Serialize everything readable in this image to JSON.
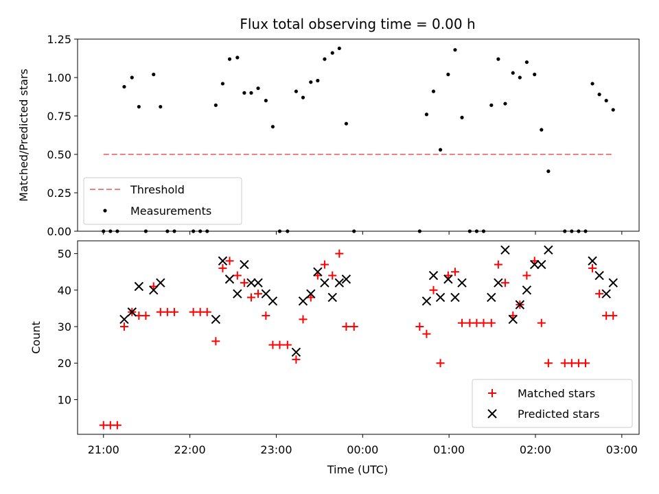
{
  "chart_data": [
    {
      "type": "scatter",
      "title": "Flux total observing time = 0.00 h",
      "xlabel": "",
      "ylabel": "Matched/Predicted stars",
      "ylim": [
        0,
        1.25
      ],
      "yticks": [
        "0.00",
        "0.25",
        "0.50",
        "0.75",
        "1.00",
        "1.25"
      ],
      "x_range_hours": [
        20.7,
        27.2
      ],
      "threshold": {
        "name": "Threshold",
        "value": 0.5,
        "x_start": 21.0,
        "x_end": 26.9,
        "color": "#f08080"
      },
      "legend": {
        "position": "lower-left"
      },
      "series": [
        {
          "name": "Measurements",
          "color": "#000000",
          "points": [
            [
              21.0,
              0
            ],
            [
              21.08,
              0
            ],
            [
              21.16,
              0
            ],
            [
              21.24,
              0.94
            ],
            [
              21.33,
              1.0
            ],
            [
              21.41,
              0.81
            ],
            [
              21.49,
              0
            ],
            [
              21.58,
              1.02
            ],
            [
              21.66,
              0.81
            ],
            [
              21.74,
              0
            ],
            [
              21.82,
              0
            ],
            [
              22.04,
              0
            ],
            [
              22.12,
              0
            ],
            [
              22.2,
              0
            ],
            [
              22.3,
              0.82
            ],
            [
              22.38,
              0.96
            ],
            [
              22.46,
              1.12
            ],
            [
              22.55,
              1.13
            ],
            [
              22.63,
              0.9
            ],
            [
              22.71,
              0.9
            ],
            [
              22.79,
              0.93
            ],
            [
              22.88,
              0.85
            ],
            [
              22.96,
              0.68
            ],
            [
              23.04,
              0
            ],
            [
              23.13,
              0
            ],
            [
              23.23,
              0.91
            ],
            [
              23.31,
              0.87
            ],
            [
              23.4,
              0.97
            ],
            [
              23.48,
              0.98
            ],
            [
              23.56,
              1.12
            ],
            [
              23.65,
              1.16
            ],
            [
              23.73,
              1.19
            ],
            [
              23.81,
              0.7
            ],
            [
              23.9,
              0
            ],
            [
              24.66,
              0
            ],
            [
              24.74,
              0.76
            ],
            [
              24.82,
              0.91
            ],
            [
              24.9,
              0.53
            ],
            [
              24.99,
              1.02
            ],
            [
              25.07,
              1.18
            ],
            [
              25.15,
              0.74
            ],
            [
              25.24,
              0
            ],
            [
              25.32,
              0
            ],
            [
              25.4,
              0
            ],
            [
              25.49,
              0.82
            ],
            [
              25.57,
              1.12
            ],
            [
              25.65,
              0.83
            ],
            [
              25.74,
              1.03
            ],
            [
              25.82,
              1.0
            ],
            [
              25.9,
              1.1
            ],
            [
              25.99,
              1.02
            ],
            [
              26.07,
              0.66
            ],
            [
              26.15,
              0.39
            ],
            [
              26.34,
              0
            ],
            [
              26.42,
              0
            ],
            [
              26.5,
              0
            ],
            [
              26.58,
              0
            ],
            [
              26.66,
              0.96
            ],
            [
              26.74,
              0.89
            ],
            [
              26.82,
              0.85
            ],
            [
              26.9,
              0.79
            ]
          ]
        }
      ]
    },
    {
      "type": "scatter",
      "title": "",
      "xlabel": "Time (UTC)",
      "ylabel": "Count",
      "ylim": [
        0.5,
        53.5
      ],
      "yticks": [
        "10",
        "20",
        "30",
        "40",
        "50"
      ],
      "xticks": [
        "21:00",
        "22:00",
        "23:00",
        "00:00",
        "01:00",
        "02:00",
        "03:00"
      ],
      "xtick_hours": [
        21,
        22,
        23,
        24,
        25,
        26,
        27
      ],
      "legend": {
        "position": "lower-right"
      },
      "series": [
        {
          "name": "Matched stars",
          "marker": "plus",
          "color": "#ff0000",
          "points": [
            [
              21.0,
              3
            ],
            [
              21.08,
              3
            ],
            [
              21.16,
              3
            ],
            [
              21.24,
              30
            ],
            [
              21.33,
              34
            ],
            [
              21.41,
              33
            ],
            [
              21.49,
              33
            ],
            [
              21.58,
              41
            ],
            [
              21.66,
              34
            ],
            [
              21.74,
              34
            ],
            [
              21.82,
              34
            ],
            [
              22.04,
              34
            ],
            [
              22.12,
              34
            ],
            [
              22.2,
              34
            ],
            [
              22.3,
              26
            ],
            [
              22.38,
              46
            ],
            [
              22.46,
              48
            ],
            [
              22.55,
              44
            ],
            [
              22.63,
              42
            ],
            [
              22.71,
              38
            ],
            [
              22.79,
              39
            ],
            [
              22.88,
              33
            ],
            [
              22.96,
              25
            ],
            [
              23.04,
              25
            ],
            [
              23.13,
              25
            ],
            [
              23.23,
              21
            ],
            [
              23.31,
              32
            ],
            [
              23.4,
              38
            ],
            [
              23.48,
              44
            ],
            [
              23.56,
              47
            ],
            [
              23.65,
              44
            ],
            [
              23.73,
              50
            ],
            [
              23.81,
              30
            ],
            [
              23.9,
              30
            ],
            [
              24.66,
              30
            ],
            [
              24.74,
              28
            ],
            [
              24.82,
              40
            ],
            [
              24.9,
              20
            ],
            [
              24.99,
              44
            ],
            [
              25.07,
              45
            ],
            [
              25.15,
              31
            ],
            [
              25.24,
              31
            ],
            [
              25.32,
              31
            ],
            [
              25.4,
              31
            ],
            [
              25.49,
              31
            ],
            [
              25.57,
              47
            ],
            [
              25.65,
              42
            ],
            [
              25.74,
              33
            ],
            [
              25.82,
              36
            ],
            [
              25.9,
              44
            ],
            [
              25.99,
              48
            ],
            [
              26.07,
              31
            ],
            [
              26.15,
              20
            ],
            [
              26.34,
              20
            ],
            [
              26.42,
              20
            ],
            [
              26.5,
              20
            ],
            [
              26.58,
              20
            ],
            [
              26.66,
              46
            ],
            [
              26.74,
              39
            ],
            [
              26.82,
              33
            ],
            [
              26.9,
              33
            ]
          ]
        },
        {
          "name": "Predicted stars",
          "marker": "x",
          "color": "#000000",
          "points": [
            [
              21.24,
              32
            ],
            [
              21.33,
              34
            ],
            [
              21.41,
              41
            ],
            [
              21.58,
              40
            ],
            [
              21.66,
              42
            ],
            [
              22.3,
              32
            ],
            [
              22.38,
              48
            ],
            [
              22.46,
              43
            ],
            [
              22.55,
              39
            ],
            [
              22.63,
              47
            ],
            [
              22.71,
              42
            ],
            [
              22.79,
              42
            ],
            [
              22.88,
              39
            ],
            [
              22.96,
              37
            ],
            [
              23.23,
              23
            ],
            [
              23.31,
              37
            ],
            [
              23.4,
              39
            ],
            [
              23.48,
              45
            ],
            [
              23.56,
              42
            ],
            [
              23.65,
              38
            ],
            [
              23.73,
              42
            ],
            [
              23.81,
              43
            ],
            [
              24.74,
              37
            ],
            [
              24.82,
              44
            ],
            [
              24.9,
              38
            ],
            [
              24.99,
              43
            ],
            [
              25.07,
              38
            ],
            [
              25.15,
              42
            ],
            [
              25.49,
              38
            ],
            [
              25.57,
              42
            ],
            [
              25.65,
              51
            ],
            [
              25.74,
              32
            ],
            [
              25.82,
              36
            ],
            [
              25.9,
              40
            ],
            [
              25.99,
              47
            ],
            [
              26.07,
              47
            ],
            [
              26.15,
              51
            ],
            [
              26.66,
              48
            ],
            [
              26.74,
              44
            ],
            [
              26.82,
              39
            ],
            [
              26.9,
              42
            ]
          ]
        }
      ]
    }
  ]
}
